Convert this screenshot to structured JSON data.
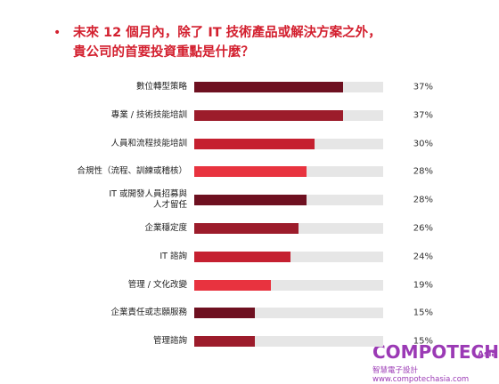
{
  "chart_data": {
    "type": "bar",
    "orientation": "horizontal",
    "title": "未來 12 個月內，除了 IT 技術產品或解決方案之外，\n貴公司的首要投資重點是什麼？",
    "categories": [
      "數位轉型策略",
      "專業 / 技術技能培訓",
      "人員和流程技能培訓",
      "合規性（流程、訓練或稽核）",
      "IT 或開發人員招募與\n人才留任",
      "企業穩定度",
      "IT 諮詢",
      "管理 / 文化改變",
      "企業責任或志願服務",
      "管理諮詢"
    ],
    "values": [
      37,
      37,
      30,
      28,
      28,
      26,
      24,
      19,
      15,
      15
    ],
    "value_labels": [
      "37%",
      "37%",
      "30%",
      "28%",
      "28%",
      "26%",
      "24%",
      "19%",
      "15%",
      "15%"
    ],
    "colors": [
      "#6e1020",
      "#9c1c2b",
      "#c52030",
      "#e8333f",
      "#6e1020",
      "#9c1c2b",
      "#c52030",
      "#e8333f",
      "#6e1020",
      "#9c1c2b"
    ],
    "xlim": [
      0,
      47
    ]
  },
  "watermark": {
    "brand": "COMPOTECH",
    "region": "Asia",
    "site": "智慧電子設計www.compotechasia.com"
  }
}
